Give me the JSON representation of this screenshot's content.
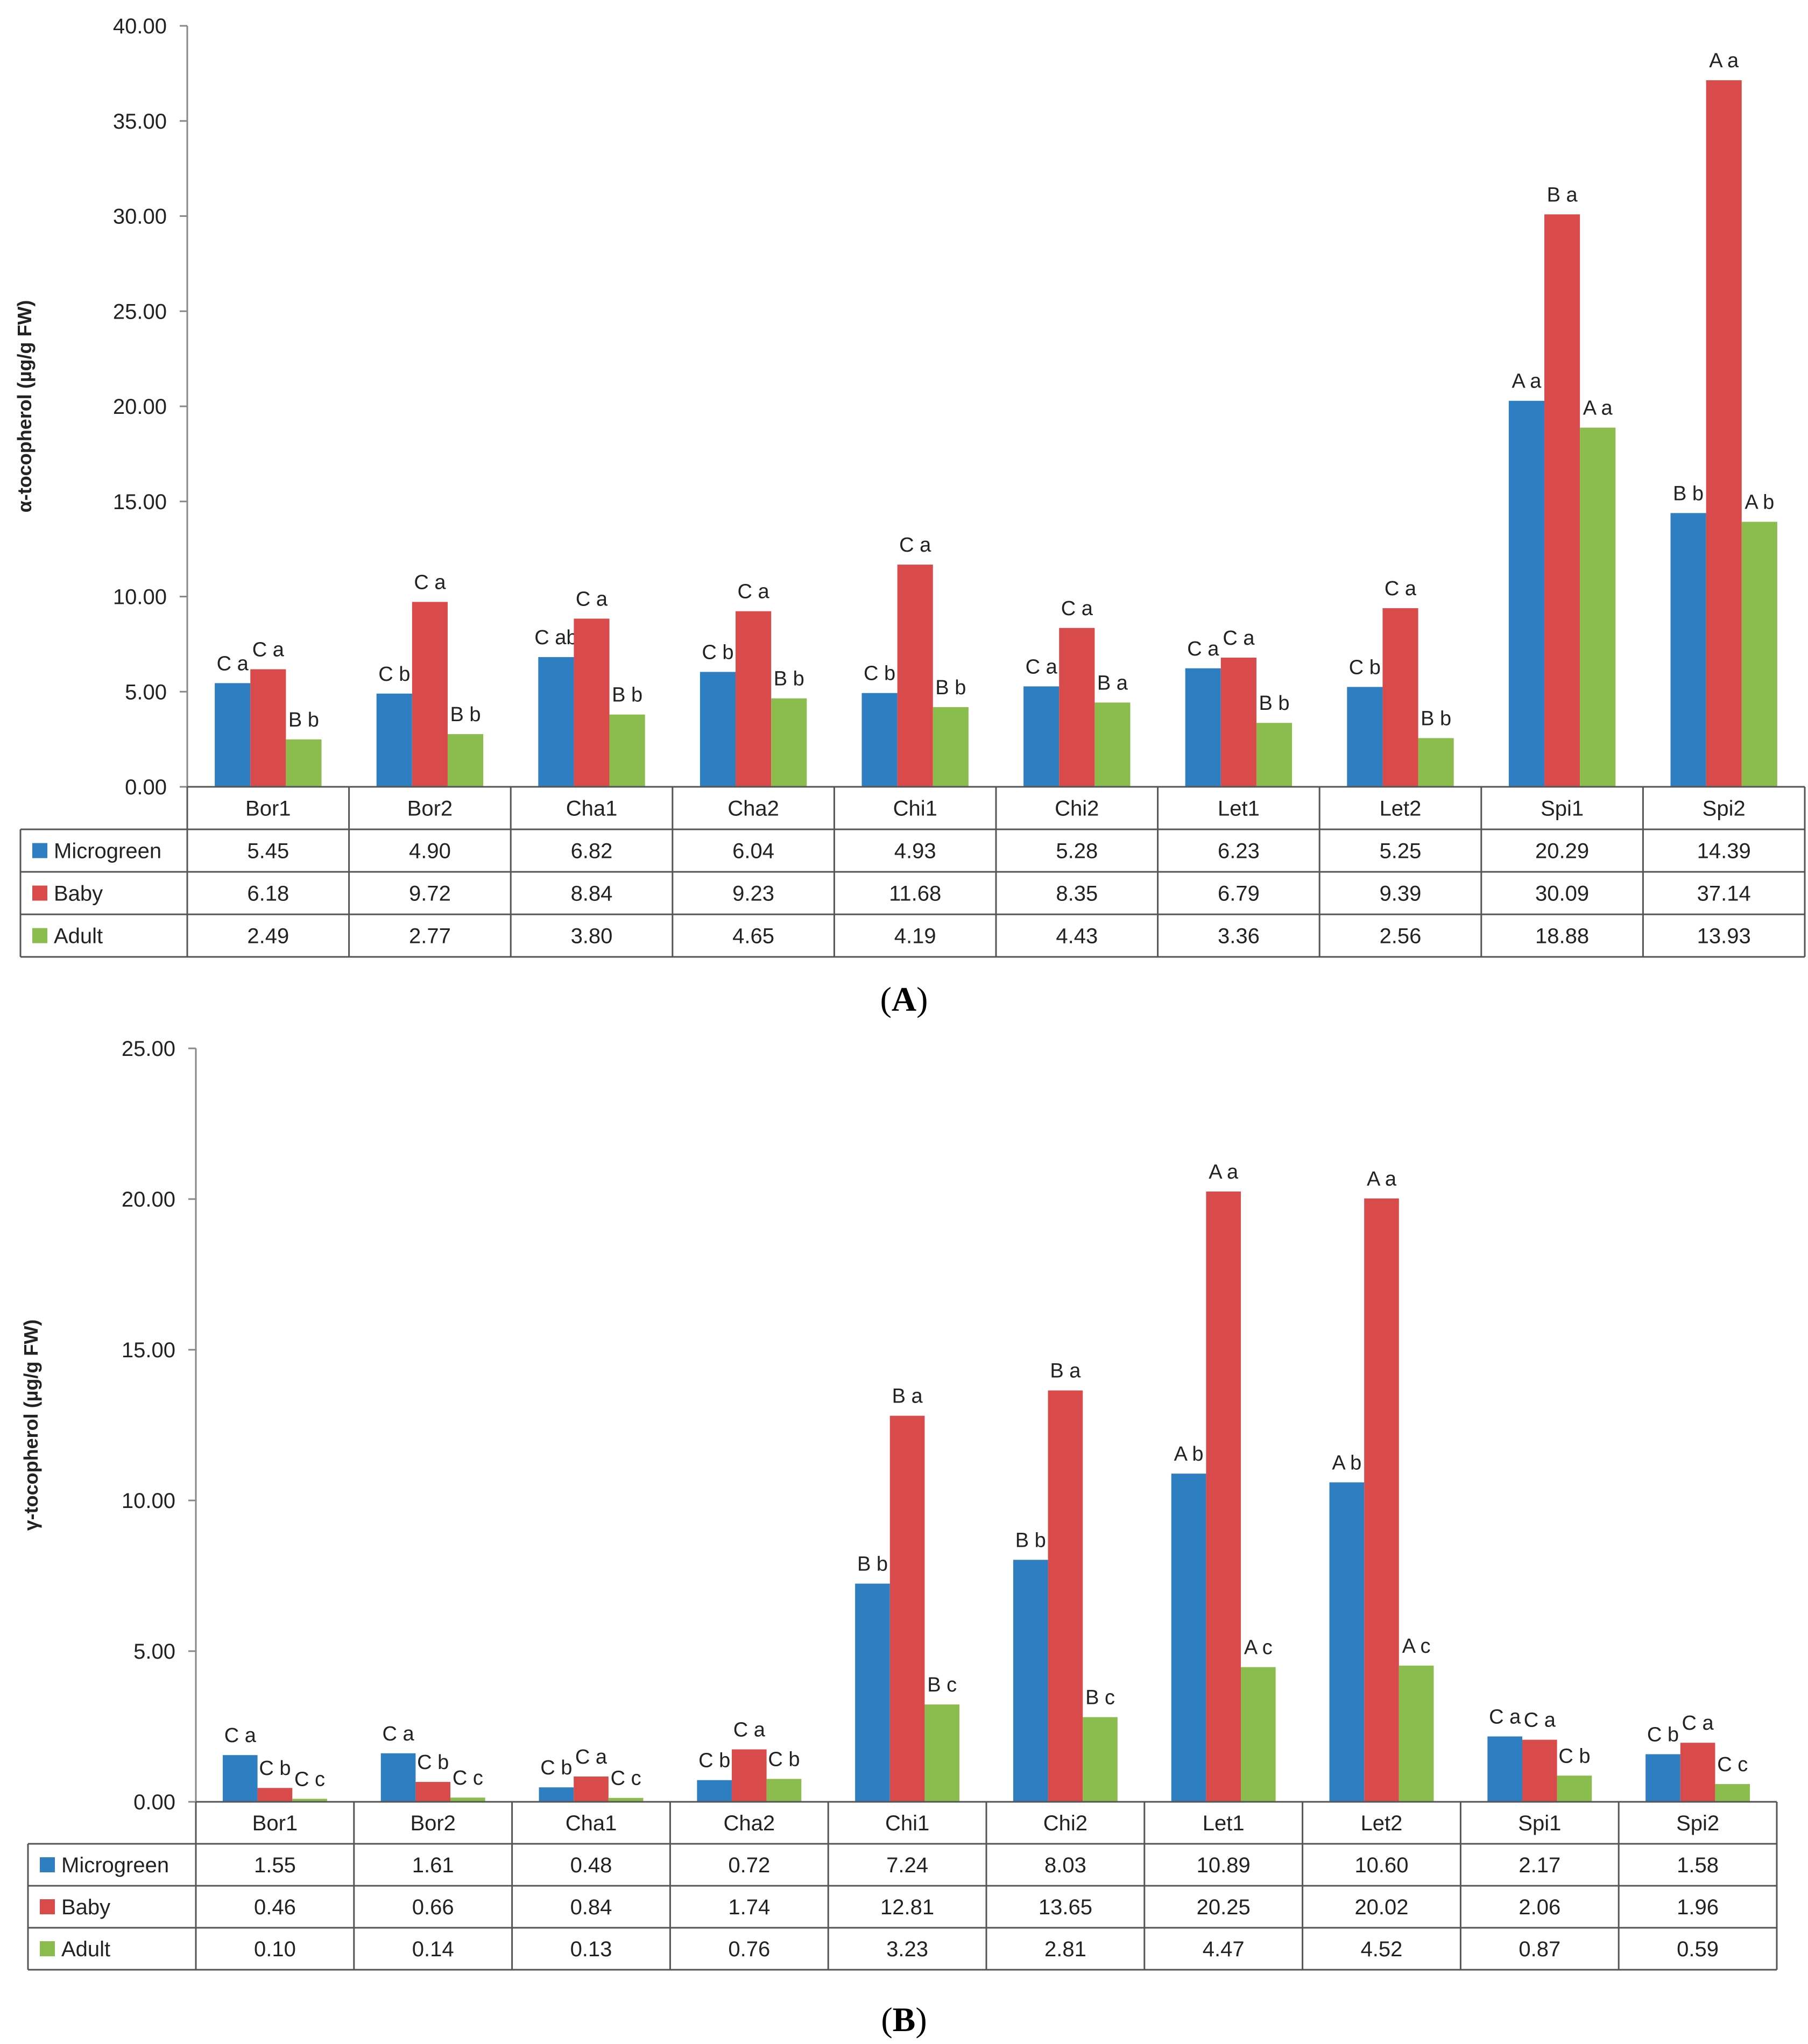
{
  "colors": {
    "Microgreen": "#2e7fc2",
    "Baby": "#d94b4b",
    "Adult": "#8bbd4e"
  },
  "chart_data": [
    {
      "type": "bar",
      "panel": "A",
      "ylabel": "α-tocopherol (µg/g FW)",
      "ylim": [
        0,
        40
      ],
      "yticks": [
        "0.00",
        "5.00",
        "10.00",
        "15.00",
        "20.00",
        "25.00",
        "30.00",
        "35.00",
        "40.00"
      ],
      "categories": [
        "Bor1",
        "Bor2",
        "Cha1",
        "Cha2",
        "Chi1",
        "Chi2",
        "Let1",
        "Let2",
        "Spi1",
        "Spi2"
      ],
      "series": [
        {
          "name": "Microgreen",
          "values": [
            5.45,
            4.9,
            6.82,
            6.04,
            4.93,
            5.28,
            6.23,
            5.25,
            20.29,
            14.39
          ],
          "display": [
            "5.45",
            "4.90",
            "6.82",
            "6.04",
            "4.93",
            "5.28",
            "6.23",
            "5.25",
            "20.29",
            "14.39"
          ],
          "letters": [
            "C a",
            "C b",
            "C ab",
            "C b",
            "C b",
            "C a",
            "C a",
            "C b",
            "A a",
            "B b"
          ]
        },
        {
          "name": "Baby",
          "values": [
            6.18,
            9.72,
            8.84,
            9.23,
            11.68,
            8.35,
            6.79,
            9.39,
            30.09,
            37.14
          ],
          "display": [
            "6.18",
            "9.72",
            "8.84",
            "9.23",
            "11.68",
            "8.35",
            "6.79",
            "9.39",
            "30.09",
            "37.14"
          ],
          "letters": [
            "C a",
            "C a",
            "C a",
            "C a",
            "C a",
            "C a",
            "C a",
            "C a",
            "B a",
            "A a"
          ]
        },
        {
          "name": "Adult",
          "values": [
            2.49,
            2.77,
            3.8,
            4.65,
            4.19,
            4.43,
            3.36,
            2.56,
            18.88,
            13.93
          ],
          "display": [
            "2.49",
            "2.77",
            "3.80",
            "4.65",
            "4.19",
            "4.43",
            "3.36",
            "2.56",
            "18.88",
            "13.93"
          ],
          "letters": [
            "B b",
            "B b",
            "B b",
            "B b",
            "B b",
            "B a",
            "B b",
            "B b",
            "A a",
            "A b"
          ]
        }
      ]
    },
    {
      "type": "bar",
      "panel": "B",
      "ylabel": "γ-tocopherol (µg/g FW)",
      "ylim": [
        0,
        25
      ],
      "yticks": [
        "0.00",
        "5.00",
        "10.00",
        "15.00",
        "20.00",
        "25.00"
      ],
      "categories": [
        "Bor1",
        "Bor2",
        "Cha1",
        "Cha2",
        "Chi1",
        "Chi2",
        "Let1",
        "Let2",
        "Spi1",
        "Spi2"
      ],
      "series": [
        {
          "name": "Microgreen",
          "values": [
            1.55,
            1.61,
            0.48,
            0.72,
            7.24,
            8.03,
            10.89,
            10.6,
            2.17,
            1.58
          ],
          "display": [
            "1.55",
            "1.61",
            "0.48",
            "0.72",
            "7.24",
            "8.03",
            "10.89",
            "10.60",
            "2.17",
            "1.58"
          ],
          "letters": [
            "C a",
            "C a",
            "C b",
            "C b",
            "B b",
            "B b",
            "A b",
            "A b",
            "C a",
            "C b"
          ]
        },
        {
          "name": "Baby",
          "values": [
            0.46,
            0.66,
            0.84,
            1.74,
            12.81,
            13.65,
            20.25,
            20.02,
            2.06,
            1.96
          ],
          "display": [
            "0.46",
            "0.66",
            "0.84",
            "1.74",
            "12.81",
            "13.65",
            "20.25",
            "20.02",
            "2.06",
            "1.96"
          ],
          "letters": [
            "C b",
            "C b",
            "C a",
            "C a",
            "B a",
            "B a",
            "A a",
            "A a",
            "C a",
            "C a"
          ]
        },
        {
          "name": "Adult",
          "values": [
            0.1,
            0.14,
            0.13,
            0.76,
            3.23,
            2.81,
            4.47,
            4.52,
            0.87,
            0.59
          ],
          "display": [
            "0.10",
            "0.14",
            "0.13",
            "0.76",
            "3.23",
            "2.81",
            "4.47",
            "4.52",
            "0.87",
            "0.59"
          ],
          "letters": [
            "C c",
            "C c",
            "C c",
            "C b",
            "B c",
            "B c",
            "A c",
            "A c",
            "C b",
            "C c"
          ]
        }
      ]
    }
  ]
}
